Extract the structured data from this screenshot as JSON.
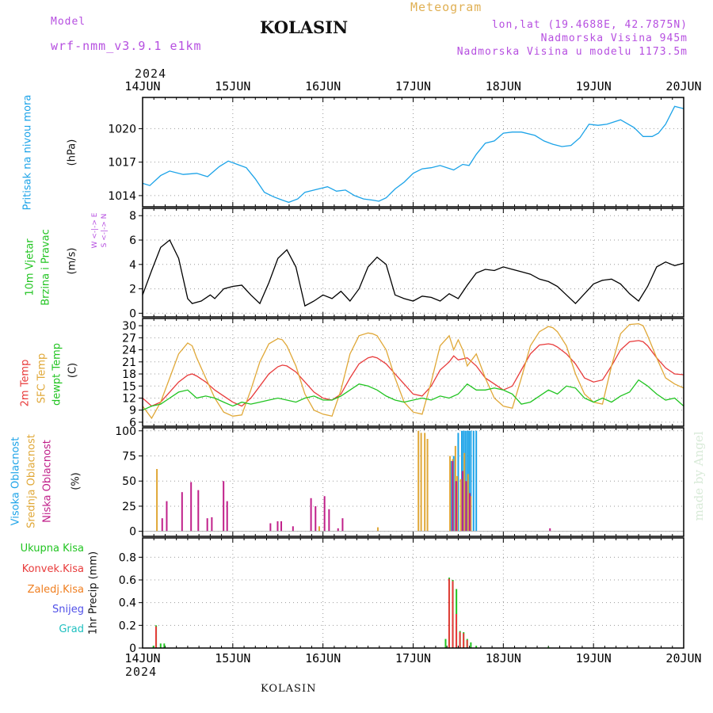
{
  "header": {
    "model_label": "Model",
    "model_name": "wrf-nmm_v3.9.1  e1km",
    "title": "KOLASIN",
    "meteogram": "Meteogram",
    "lonlat": "lon,lat (19.4688E, 42.7875N)",
    "altitude": "Nadmorska Visina 945m",
    "model_altitude": "Nadmorska Visina u modelu 1173.5m"
  },
  "footer": {
    "location": "KOLASIN",
    "credit": "made by Angel"
  },
  "colors": {
    "pressure": "#1ca3e8",
    "t2m": "#e83b3b",
    "sfc": "#e0a838",
    "dew": "#22c422",
    "high_cloud": "#1ca3e8",
    "mid_cloud": "#e0a838",
    "low_cloud": "#c0208a",
    "total_precip": "#22c422",
    "conv_precip": "#e83b3b",
    "frz_precip": "#f07f20",
    "snow": "#5050e8",
    "hail": "#20c0c0",
    "grid": "#9a9a9a",
    "credit": "#d8ead8"
  },
  "axes": {
    "year": "2024",
    "dates": [
      "14JUN",
      "15JUN",
      "16JUN",
      "17JUN",
      "18JUN",
      "19JUN",
      "20JUN"
    ]
  },
  "panels": {
    "pressure": {
      "label": "Pritisak na nivou mora",
      "unit": "(hPa)"
    },
    "wind": {
      "label1": "10m Vjetar",
      "label2": "Brzina i Pravac",
      "unit": "(m/s)",
      "compass_top": "W <-|-> E",
      "compass_bot": "S <-|-> N"
    },
    "temp": {
      "label1": "2m Temp",
      "label2": "SFC Temp",
      "label3": "dewpt Temp",
      "unit": "(C)"
    },
    "cloud": {
      "label1": "Visoka Oblacnost",
      "label2": "Srednja Oblacnost",
      "label3": "Niska Oblacnost",
      "unit": "(%)"
    },
    "precip": {
      "legend": [
        "Ukupna Kisa",
        "Konvek.Kisa",
        "Zaledj.Kisa",
        "Snijeg",
        "Grad"
      ],
      "unit": "1hr Precip (mm)"
    }
  },
  "chart_data": [
    {
      "type": "line",
      "title": "Pritisak na nivou mora",
      "ylabel": "(hPa)",
      "x_unit": "days from 14JUN 2024 00Z",
      "xlim": [
        0,
        6
      ],
      "ylim": [
        1013,
        1022.8
      ],
      "yticks": [
        1014,
        1017,
        1020
      ],
      "series": [
        {
          "name": "Pritisak na nivou mora",
          "color": "#1ca3e8",
          "x": [
            0,
            0.08,
            0.2,
            0.3,
            0.45,
            0.6,
            0.72,
            0.85,
            0.95,
            1.05,
            1.15,
            1.25,
            1.35,
            1.45,
            1.55,
            1.62,
            1.72,
            1.8,
            1.95,
            2.05,
            2.15,
            2.25,
            2.35,
            2.45,
            2.55,
            2.62,
            2.7,
            2.8,
            2.9,
            3.0,
            3.1,
            3.2,
            3.3,
            3.45,
            3.55,
            3.62,
            3.7,
            3.8,
            3.9,
            4.0,
            4.1,
            4.2,
            4.35,
            4.45,
            4.55,
            4.65,
            4.75,
            4.85,
            4.95,
            5.05,
            5.15,
            5.3,
            5.45,
            5.55,
            5.65,
            5.72,
            5.8,
            5.9,
            6.0
          ],
          "y": [
            1015.1,
            1014.9,
            1015.8,
            1016.2,
            1015.9,
            1016.0,
            1015.7,
            1016.6,
            1017.1,
            1016.8,
            1016.5,
            1015.5,
            1014.3,
            1013.9,
            1013.6,
            1013.4,
            1013.7,
            1014.3,
            1014.6,
            1014.8,
            1014.4,
            1014.5,
            1014.0,
            1013.7,
            1013.6,
            1013.5,
            1013.8,
            1014.6,
            1015.2,
            1016.0,
            1016.4,
            1016.5,
            1016.7,
            1016.3,
            1016.8,
            1016.7,
            1017.7,
            1018.7,
            1018.9,
            1019.6,
            1019.7,
            1019.7,
            1019.4,
            1018.9,
            1018.6,
            1018.4,
            1018.5,
            1019.2,
            1020.4,
            1020.3,
            1020.4,
            1020.8,
            1020.1,
            1019.3,
            1019.3,
            1019.6,
            1020.4,
            1022.0,
            1021.8
          ]
        }
      ]
    },
    {
      "type": "line",
      "title": "10m Vjetar Brzina i Pravac",
      "ylabel": "(m/s)",
      "x_unit": "days from 14JUN 2024 00Z",
      "xlim": [
        0,
        6
      ],
      "ylim": [
        -0.3,
        8.6
      ],
      "yticks": [
        0,
        2,
        4,
        6,
        8
      ],
      "series": [
        {
          "name": "10m Vjetar",
          "color": "#000000",
          "x": [
            0,
            0.1,
            0.2,
            0.3,
            0.4,
            0.5,
            0.55,
            0.65,
            0.75,
            0.8,
            0.9,
            1.0,
            1.1,
            1.2,
            1.3,
            1.4,
            1.5,
            1.6,
            1.7,
            1.8,
            1.9,
            2.0,
            2.1,
            2.2,
            2.3,
            2.4,
            2.5,
            2.6,
            2.7,
            2.8,
            2.9,
            3.0,
            3.1,
            3.2,
            3.3,
            3.4,
            3.5,
            3.6,
            3.7,
            3.8,
            3.9,
            4.0,
            4.1,
            4.2,
            4.3,
            4.4,
            4.5,
            4.6,
            4.7,
            4.8,
            4.9,
            5.0,
            5.1,
            5.2,
            5.3,
            5.4,
            5.5,
            5.6,
            5.7,
            5.8,
            5.9,
            6.0
          ],
          "y": [
            1.5,
            3.5,
            5.4,
            6.0,
            4.5,
            1.2,
            0.8,
            1.0,
            1.5,
            1.2,
            2.0,
            2.2,
            2.3,
            1.5,
            0.8,
            2.5,
            4.5,
            5.2,
            3.8,
            0.6,
            1.0,
            1.5,
            1.2,
            1.8,
            1.0,
            2.0,
            3.8,
            4.6,
            4.0,
            1.5,
            1.2,
            1.0,
            1.4,
            1.3,
            1.0,
            1.6,
            1.2,
            2.3,
            3.3,
            3.6,
            3.5,
            3.8,
            3.6,
            3.4,
            3.2,
            2.8,
            2.6,
            2.2,
            1.5,
            0.8,
            1.6,
            2.4,
            2.7,
            2.8,
            2.4,
            1.6,
            1.0,
            2.2,
            3.8,
            4.2,
            3.9,
            4.1
          ]
        }
      ]
    },
    {
      "type": "line",
      "title": "2m Temp / SFC Temp / dewpt Temp",
      "ylabel": "(C)",
      "x_unit": "days from 14JUN 2024 00Z",
      "xlim": [
        0,
        6
      ],
      "ylim": [
        5,
        31.8
      ],
      "yticks": [
        6,
        9,
        12,
        15,
        18,
        21,
        24,
        27,
        30
      ],
      "series": [
        {
          "name": "2m Temp",
          "color": "#e83b3b",
          "x": [
            0,
            0.1,
            0.2,
            0.3,
            0.4,
            0.5,
            0.55,
            0.6,
            0.7,
            0.8,
            0.9,
            1.0,
            1.1,
            1.2,
            1.3,
            1.4,
            1.5,
            1.55,
            1.6,
            1.7,
            1.8,
            1.9,
            2.0,
            2.1,
            2.2,
            2.3,
            2.4,
            2.5,
            2.55,
            2.6,
            2.7,
            2.8,
            2.9,
            3.0,
            3.1,
            3.2,
            3.3,
            3.4,
            3.45,
            3.5,
            3.6,
            3.7,
            3.8,
            3.9,
            4.0,
            4.1,
            4.2,
            4.3,
            4.4,
            4.5,
            4.55,
            4.6,
            4.7,
            4.8,
            4.9,
            5.0,
            5.1,
            5.2,
            5.3,
            5.4,
            5.5,
            5.55,
            5.6,
            5.7,
            5.8,
            5.9,
            6.0
          ],
          "y": [
            12,
            10,
            11,
            13.5,
            16,
            17.7,
            18,
            17.5,
            16,
            14,
            12.5,
            11,
            10,
            12,
            15,
            18,
            19.8,
            20.2,
            20,
            18.5,
            16,
            13.5,
            12,
            11.5,
            13,
            17,
            20.5,
            22,
            22.3,
            22,
            20.5,
            18,
            15.5,
            13,
            12.5,
            15,
            19,
            21,
            22.5,
            21.5,
            22,
            20,
            17,
            15.5,
            14,
            15,
            19,
            23,
            25.2,
            25.5,
            25.3,
            24.7,
            23,
            20.5,
            17,
            16,
            16.5,
            20,
            24,
            26,
            26.3,
            26,
            25,
            22,
            19.5,
            18,
            17.8
          ]
        },
        {
          "name": "SFC Temp",
          "color": "#e0a838",
          "x": [
            0,
            0.1,
            0.2,
            0.3,
            0.4,
            0.5,
            0.55,
            0.6,
            0.7,
            0.8,
            0.9,
            1.0,
            1.1,
            1.2,
            1.3,
            1.4,
            1.5,
            1.55,
            1.6,
            1.7,
            1.8,
            1.9,
            2.0,
            2.1,
            2.2,
            2.3,
            2.4,
            2.5,
            2.55,
            2.6,
            2.7,
            2.8,
            2.9,
            3.0,
            3.1,
            3.2,
            3.3,
            3.4,
            3.45,
            3.5,
            3.55,
            3.6,
            3.7,
            3.8,
            3.9,
            4.0,
            4.1,
            4.2,
            4.3,
            4.4,
            4.5,
            4.55,
            4.6,
            4.7,
            4.8,
            4.9,
            5.0,
            5.1,
            5.2,
            5.3,
            5.4,
            5.5,
            5.55,
            5.6,
            5.7,
            5.8,
            5.9,
            6.0
          ],
          "y": [
            10,
            7,
            11,
            17,
            23,
            25.7,
            25,
            22,
            17,
            12,
            8.5,
            7.5,
            7.8,
            14,
            21,
            25.5,
            26.8,
            26.5,
            25,
            20,
            13,
            9,
            8,
            7.5,
            14,
            23,
            27.5,
            28.2,
            28,
            27.5,
            24,
            17,
            11,
            8.5,
            8,
            16,
            25,
            27.5,
            24,
            26.5,
            24,
            20,
            23,
            17,
            12,
            10,
            9.5,
            17,
            25,
            28.5,
            29.8,
            29.5,
            28.5,
            25,
            18,
            13,
            11,
            10.5,
            20,
            28,
            30.3,
            30.5,
            30,
            27.5,
            22,
            17,
            15.5,
            14.5
          ]
        },
        {
          "name": "dewpt Temp",
          "color": "#22c422",
          "x": [
            0,
            0.1,
            0.2,
            0.3,
            0.4,
            0.5,
            0.55,
            0.6,
            0.7,
            0.8,
            0.9,
            1.0,
            1.1,
            1.2,
            1.3,
            1.4,
            1.5,
            1.6,
            1.7,
            1.8,
            1.9,
            2.0,
            2.1,
            2.2,
            2.3,
            2.4,
            2.5,
            2.6,
            2.7,
            2.8,
            2.9,
            3.0,
            3.1,
            3.2,
            3.3,
            3.4,
            3.5,
            3.6,
            3.7,
            3.8,
            3.9,
            4.0,
            4.1,
            4.2,
            4.3,
            4.4,
            4.5,
            4.6,
            4.7,
            4.8,
            4.9,
            5.0,
            5.1,
            5.2,
            5.3,
            5.4,
            5.5,
            5.6,
            5.7,
            5.8,
            5.9,
            6.0
          ],
          "y": [
            9,
            10,
            10.5,
            12,
            13.5,
            14,
            13,
            12,
            12.5,
            12,
            11,
            10,
            11,
            10.5,
            11,
            11.5,
            12,
            11.5,
            11,
            12,
            12.5,
            11.5,
            11.5,
            12.5,
            14,
            15.5,
            15,
            14,
            12.5,
            11.5,
            11,
            11.5,
            12,
            11.5,
            12.5,
            12,
            13,
            15.5,
            14,
            14,
            14.5,
            14,
            13,
            10.5,
            11,
            12.5,
            14,
            13,
            15,
            14.5,
            12,
            11,
            12,
            11,
            12.5,
            13.5,
            16.5,
            15,
            13,
            11.5,
            12,
            10
          ]
        }
      ]
    },
    {
      "type": "bar",
      "title": "Visoka / Srednja / Niska Oblacnost",
      "ylabel": "(%)",
      "x_unit": "days from 14JUN 2024 00Z",
      "xlim": [
        0,
        6
      ],
      "ylim": [
        -5,
        103
      ],
      "yticks": [
        0,
        25,
        50,
        75,
        100
      ],
      "series": [
        {
          "name": "Visoka Oblacnost",
          "color": "#1ca3e8",
          "x": [
            3.42,
            3.45,
            3.5,
            3.54,
            3.56,
            3.58,
            3.6,
            3.62,
            3.64,
            3.67,
            3.7
          ],
          "values": [
            70,
            75,
            98,
            100,
            100,
            100,
            100,
            100,
            100,
            100,
            100
          ]
        },
        {
          "name": "Srednja Oblacnost",
          "color": "#e0a838",
          "x": [
            0.15,
            1.95,
            2.6,
            3.05,
            3.08,
            3.12,
            3.15,
            3.4,
            3.43,
            3.46,
            3.48,
            3.52,
            3.56,
            3.6,
            3.63
          ],
          "values": [
            62,
            5,
            4,
            100,
            98,
            98,
            92,
            75,
            72,
            85,
            55,
            52,
            78,
            57,
            35
          ]
        },
        {
          "name": "Niska Oblacnost",
          "color": "#c0208a",
          "x": [
            0.2,
            0.25,
            0.42,
            0.52,
            0.6,
            0.7,
            0.75,
            0.88,
            0.92,
            1.4,
            1.48,
            1.52,
            1.65,
            1.85,
            1.9,
            2.0,
            2.05,
            2.15,
            2.2,
            3.42,
            3.46,
            3.53,
            3.57,
            3.61,
            4.5
          ],
          "values": [
            13,
            30,
            39,
            49,
            41,
            13,
            14,
            50,
            30,
            8,
            10,
            10,
            5,
            33,
            25,
            35,
            22,
            3,
            13,
            70,
            50,
            60,
            50,
            38,
            3
          ]
        }
      ]
    },
    {
      "type": "bar",
      "title": "1hr Precip",
      "ylabel": "(mm)",
      "x_unit": "days from 14JUN 2024 00Z",
      "xlim": [
        0,
        6
      ],
      "ylim": [
        0,
        0.97
      ],
      "yticks": [
        0,
        0.2,
        0.4,
        0.6,
        0.8
      ],
      "series": [
        {
          "name": "Ukupna Kisa",
          "color": "#22c422",
          "x": [
            0.12,
            0.15,
            0.2,
            0.24,
            3.36,
            3.4,
            3.44,
            3.48,
            3.52,
            3.56,
            3.6,
            3.64,
            3.7,
            4.5
          ],
          "values": [
            0.02,
            0.2,
            0.04,
            0.04,
            0.08,
            0.62,
            0.6,
            0.52,
            0.15,
            0.14,
            0.08,
            0.05,
            0.02,
            0.01
          ]
        },
        {
          "name": "Konvek.Kisa",
          "color": "#e83b3b",
          "x": [
            0.14,
            3.39,
            3.43,
            3.47,
            3.51,
            3.55,
            3.59
          ],
          "values": [
            0.19,
            0.61,
            0.59,
            0.3,
            0.14,
            0.13,
            0.07
          ]
        }
      ]
    }
  ]
}
